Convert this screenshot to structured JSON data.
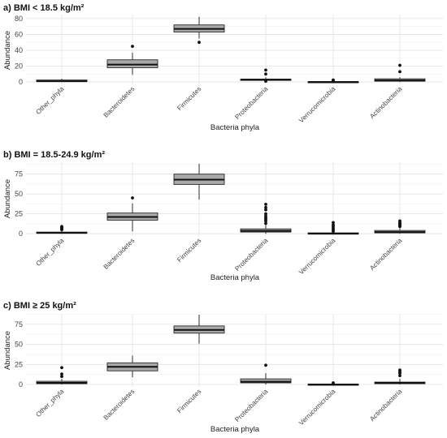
{
  "figure": {
    "xlabel": "Bacteria phyla",
    "ylabel": "Abundance"
  },
  "chart_data": [
    {
      "type": "box",
      "title": "a) BMI < 18.5 kg/m²",
      "xlabel": "Bacteria phyla",
      "ylabel": "Abundance",
      "categories": [
        "Other_phyla",
        "Bacteroidetes",
        "Firmicutes",
        "Proteobacteria",
        "Verrucomicrobia",
        "Actinobacteria"
      ],
      "ylim": [
        -3,
        85
      ],
      "yticks": [
        0,
        20,
        40,
        60,
        80
      ],
      "grid": true,
      "boxes": [
        {
          "category": "Other_phyla",
          "min": 0,
          "q1": 0.5,
          "median": 1,
          "q3": 2.5,
          "max": 4,
          "outliers": []
        },
        {
          "category": "Bacteroidetes",
          "min": 9,
          "q1": 18,
          "median": 22,
          "q3": 28,
          "max": 37,
          "outliers": [
            45
          ]
        },
        {
          "category": "Firmicutes",
          "min": 55,
          "q1": 63,
          "median": 67,
          "q3": 72,
          "max": 82,
          "outliers": [
            50
          ]
        },
        {
          "category": "Proteobacteria",
          "min": 1,
          "q1": 2.5,
          "median": 3,
          "q3": 3.5,
          "max": 6,
          "outliers": [
            15,
            10,
            1
          ]
        },
        {
          "category": "Verrucomicrobia",
          "min": 0,
          "q1": 0,
          "median": 0,
          "q3": 0.5,
          "max": 1,
          "outliers": [
            2.5,
            2
          ]
        },
        {
          "category": "Actinobacteria",
          "min": 0,
          "q1": 1,
          "median": 2,
          "q3": 4,
          "max": 6,
          "outliers": [
            21,
            13
          ]
        }
      ]
    },
    {
      "type": "box",
      "title": "b) BMI = 18.5-24.9 kg/m²",
      "xlabel": "Bacteria phyla",
      "ylabel": "Abundance",
      "categories": [
        "Other_phyla",
        "Bacteroidetes",
        "Firmicutes",
        "Proteobacteria",
        "Verrucomicrobia",
        "Actinobacteria"
      ],
      "ylim": [
        -3,
        90
      ],
      "yticks": [
        0,
        25,
        50,
        75
      ],
      "grid": true,
      "boxes": [
        {
          "category": "Other_phyla",
          "min": 0,
          "q1": 0.5,
          "median": 1,
          "q3": 2,
          "max": 4,
          "outliers": [
            5,
            6,
            7,
            8,
            9
          ]
        },
        {
          "category": "Bacteroidetes",
          "min": 3,
          "q1": 17,
          "median": 21,
          "q3": 26,
          "max": 38,
          "outliers": [
            45
          ]
        },
        {
          "category": "Firmicutes",
          "min": 43,
          "q1": 62,
          "median": 68,
          "q3": 75,
          "max": 88,
          "outliers": []
        },
        {
          "category": "Proteobacteria",
          "min": 0,
          "q1": 2,
          "median": 3.5,
          "q3": 6,
          "max": 11,
          "outliers": [
            13,
            16,
            18,
            20,
            22,
            25,
            30,
            33,
            37
          ]
        },
        {
          "category": "Verrucomicrobia",
          "min": 0,
          "q1": 0,
          "median": 0,
          "q3": 1,
          "max": 2,
          "outliers": [
            3,
            5,
            7,
            9,
            11,
            14
          ]
        },
        {
          "category": "Actinobacteria",
          "min": 0,
          "q1": 1,
          "median": 2,
          "q3": 4,
          "max": 8,
          "outliers": [
            9,
            10,
            11,
            12,
            13,
            14,
            16
          ]
        }
      ]
    },
    {
      "type": "box",
      "title": "c) BMI ≥ 25 kg/m²",
      "xlabel": "Bacteria phyla",
      "ylabel": "Abundance",
      "categories": [
        "Other_phyla",
        "Bacteroidetes",
        "Firmicutes",
        "Proteobacteria",
        "Verrucomicrobia",
        "Actinobacteria"
      ],
      "ylim": [
        -3,
        88
      ],
      "yticks": [
        0,
        25,
        50,
        75
      ],
      "grid": true,
      "boxes": [
        {
          "category": "Other_phyla",
          "min": 0,
          "q1": 1,
          "median": 2,
          "q3": 4,
          "max": 7,
          "outliers": [
            10,
            13,
            21
          ]
        },
        {
          "category": "Bacteroidetes",
          "min": 9,
          "q1": 17,
          "median": 22,
          "q3": 27,
          "max": 36,
          "outliers": []
        },
        {
          "category": "Firmicutes",
          "min": 51,
          "q1": 64,
          "median": 68,
          "q3": 73,
          "max": 87,
          "outliers": []
        },
        {
          "category": "Proteobacteria",
          "min": 0,
          "q1": 2,
          "median": 3.5,
          "q3": 7,
          "max": 14,
          "outliers": [
            24
          ]
        },
        {
          "category": "Verrucomicrobia",
          "min": 0,
          "q1": 0,
          "median": 0,
          "q3": 0.5,
          "max": 1,
          "outliers": [
            2
          ]
        },
        {
          "category": "Actinobacteria",
          "min": 0,
          "q1": 1,
          "median": 2,
          "q3": 3,
          "max": 7,
          "outliers": [
            11,
            14,
            16,
            18
          ]
        }
      ]
    }
  ]
}
